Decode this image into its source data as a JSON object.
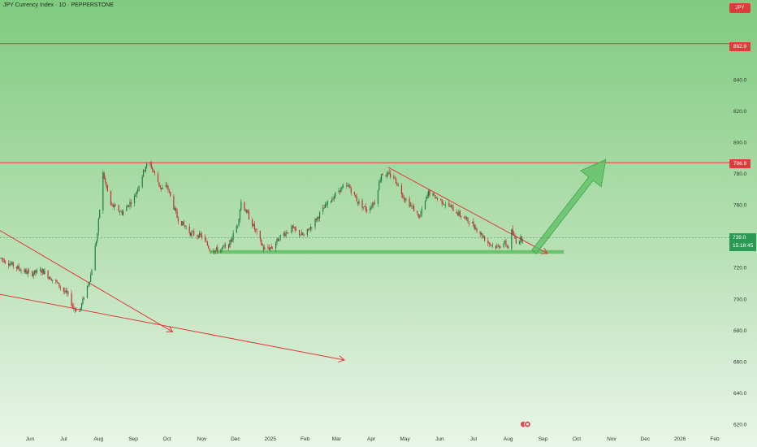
{
  "header": {
    "title": "JPY Currency Index · 1D · PEPPERSTONE",
    "symbol_badge": "JPY"
  },
  "badges": {
    "upper_level": "862.9",
    "resistance_level": "786.9",
    "price": "739.0",
    "countdown": "15:18:45"
  },
  "colors": {
    "background_top": "#7fcb7f",
    "background_bottom": "#e9f6e9",
    "up_candle": "#1e7d42",
    "down_candle": "#c23030",
    "drawing_line": "#e03a3a",
    "support_zone": "#5cbf62",
    "forecast_arrow": "#5cbf62"
  },
  "chart_data": {
    "type": "candlestick",
    "title": "JPY Currency Index · 1D · PEPPERSTONE",
    "ylim": [
      615,
      884
    ],
    "y_ticks": [
      620,
      640,
      660,
      680,
      700,
      720,
      740,
      760,
      780,
      800,
      820,
      840,
      860
    ],
    "x_ticks": [
      "Jun",
      "Jul",
      "Aug",
      "Sep",
      "Oct",
      "Nov",
      "Dec",
      "2025",
      "Feb",
      "Mar",
      "Apr",
      "May",
      "Jun",
      "Jul",
      "Aug",
      "Sep",
      "Oct",
      "Nov",
      "Dec",
      "2026",
      "Feb"
    ],
    "x_tick_dates": [
      "2024-06-01",
      "2024-07-01",
      "2024-08-01",
      "2024-09-01",
      "2024-10-01",
      "2024-11-01",
      "2024-12-01",
      "2025-01-01",
      "2025-02-01",
      "2025-03-01",
      "2025-04-01",
      "2025-05-01",
      "2025-06-01",
      "2025-07-01",
      "2025-08-01",
      "2025-09-01",
      "2025-10-01",
      "2025-11-01",
      "2025-12-01",
      "2026-01-01",
      "2026-02-01"
    ],
    "series_anchors": [
      [
        "2024-05-06",
        726
      ],
      [
        "2024-05-20",
        720
      ],
      [
        "2024-06-01",
        716
      ],
      [
        "2024-06-12",
        718
      ],
      [
        "2024-06-25",
        710
      ],
      [
        "2024-07-05",
        702
      ],
      [
        "2024-07-10",
        694
      ],
      [
        "2024-07-15",
        692
      ],
      [
        "2024-07-25",
        715
      ],
      [
        "2024-07-31",
        742
      ],
      [
        "2024-08-05",
        780
      ],
      [
        "2024-08-12",
        760
      ],
      [
        "2024-08-22",
        755
      ],
      [
        "2024-09-02",
        765
      ],
      [
        "2024-09-12",
        785
      ],
      [
        "2024-09-16",
        786
      ],
      [
        "2024-09-26",
        770
      ],
      [
        "2024-10-01",
        772
      ],
      [
        "2024-10-10",
        752
      ],
      [
        "2024-10-22",
        742
      ],
      [
        "2024-11-01",
        740
      ],
      [
        "2024-11-08",
        732
      ],
      [
        "2024-11-15",
        731
      ],
      [
        "2024-11-25",
        734
      ],
      [
        "2024-12-03",
        748
      ],
      [
        "2024-12-06",
        762
      ],
      [
        "2024-12-16",
        748
      ],
      [
        "2024-12-26",
        732
      ],
      [
        "2025-01-03",
        733
      ],
      [
        "2025-01-10",
        740
      ],
      [
        "2025-01-20",
        745
      ],
      [
        "2025-01-31",
        740
      ],
      [
        "2025-02-10",
        750
      ],
      [
        "2025-02-20",
        760
      ],
      [
        "2025-03-04",
        770
      ],
      [
        "2025-03-12",
        772
      ],
      [
        "2025-03-20",
        762
      ],
      [
        "2025-03-28",
        757
      ],
      [
        "2025-04-04",
        762
      ],
      [
        "2025-04-10",
        780
      ],
      [
        "2025-04-21",
        778
      ],
      [
        "2025-04-30",
        765
      ],
      [
        "2025-05-08",
        758
      ],
      [
        "2025-05-14",
        752
      ],
      [
        "2025-05-22",
        768
      ],
      [
        "2025-05-30",
        764
      ],
      [
        "2025-06-10",
        759
      ],
      [
        "2025-06-20",
        753
      ],
      [
        "2025-06-30",
        748
      ],
      [
        "2025-07-07",
        742
      ],
      [
        "2025-07-14",
        736
      ],
      [
        "2025-07-22",
        733
      ],
      [
        "2025-07-28",
        736
      ],
      [
        "2025-08-01",
        733
      ],
      [
        "2025-08-04",
        743
      ],
      [
        "2025-08-08",
        737
      ],
      [
        "2025-08-14",
        739
      ]
    ],
    "last_price": 739.0,
    "horizontal_levels": [
      862.9,
      786.9
    ],
    "support_zone": {
      "from": "2024-11-08",
      "to": "2025-09-05",
      "value": 730
    },
    "trend_lines": [
      {
        "from": [
          "2024-04-20",
          750
        ],
        "to": [
          "2024-10-06",
          679
        ]
      },
      {
        "from": [
          "2024-04-20",
          705
        ],
        "to": [
          "2025-03-08",
          661
        ]
      },
      {
        "from": [
          "2025-04-16",
          784
        ],
        "to": [
          "2025-09-05",
          729
        ]
      }
    ],
    "forecast_arrow": {
      "from": [
        "2025-08-24",
        730
      ],
      "to": [
        "2025-10-27",
        789
      ]
    },
    "grid": false,
    "legend": "none"
  }
}
